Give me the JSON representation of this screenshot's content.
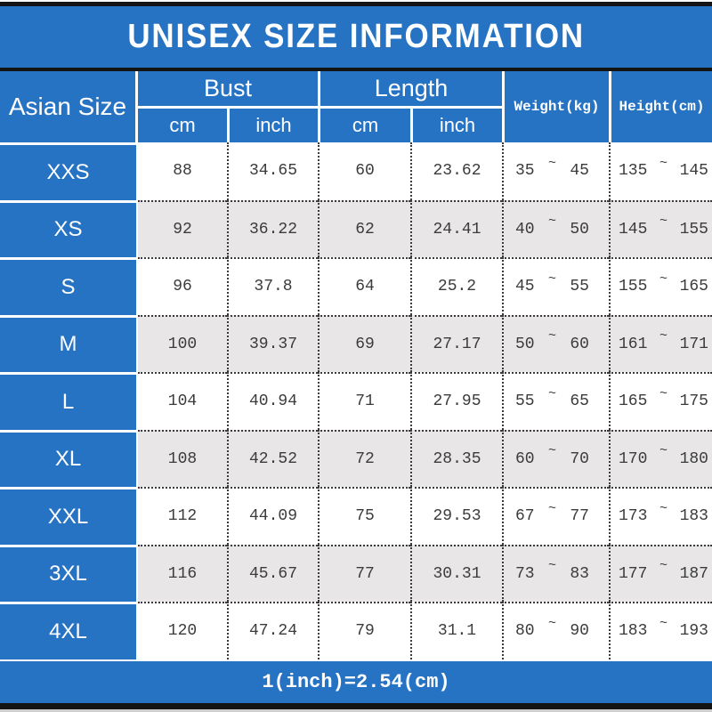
{
  "title": "UNISEX SIZE INFORMATION",
  "table": {
    "size_col_header": "Asian Size",
    "bust_label": "Bust",
    "length_label": "Length",
    "bust_sub": [
      "cm",
      "inch"
    ],
    "length_sub": [
      "cm",
      "inch"
    ],
    "weight_header": "Weight(kg)",
    "height_header": "Height(cm)",
    "sep": "~",
    "rows": [
      {
        "size": "XXS",
        "bust_cm": "88",
        "bust_inch": "34.65",
        "length_cm": "60",
        "length_inch": "23.62",
        "weight_min": "35",
        "weight_max": "45",
        "height_min": "135",
        "height_max": "145"
      },
      {
        "size": "XS",
        "bust_cm": "92",
        "bust_inch": "36.22",
        "length_cm": "62",
        "length_inch": "24.41",
        "weight_min": "40",
        "weight_max": "50",
        "height_min": "145",
        "height_max": "155"
      },
      {
        "size": "S",
        "bust_cm": "96",
        "bust_inch": "37.8",
        "length_cm": "64",
        "length_inch": "25.2",
        "weight_min": "45",
        "weight_max": "55",
        "height_min": "155",
        "height_max": "165"
      },
      {
        "size": "M",
        "bust_cm": "100",
        "bust_inch": "39.37",
        "length_cm": "69",
        "length_inch": "27.17",
        "weight_min": "50",
        "weight_max": "60",
        "height_min": "161",
        "height_max": "171"
      },
      {
        "size": "L",
        "bust_cm": "104",
        "bust_inch": "40.94",
        "length_cm": "71",
        "length_inch": "27.95",
        "weight_min": "55",
        "weight_max": "65",
        "height_min": "165",
        "height_max": "175"
      },
      {
        "size": "XL",
        "bust_cm": "108",
        "bust_inch": "42.52",
        "length_cm": "72",
        "length_inch": "28.35",
        "weight_min": "60",
        "weight_max": "70",
        "height_min": "170",
        "height_max": "180"
      },
      {
        "size": "XXL",
        "bust_cm": "112",
        "bust_inch": "44.09",
        "length_cm": "75",
        "length_inch": "29.53",
        "weight_min": "67",
        "weight_max": "77",
        "height_min": "173",
        "height_max": "183"
      },
      {
        "size": "3XL",
        "bust_cm": "116",
        "bust_inch": "45.67",
        "length_cm": "77",
        "length_inch": "30.31",
        "weight_min": "73",
        "weight_max": "83",
        "height_min": "177",
        "height_max": "187"
      },
      {
        "size": "4XL",
        "bust_cm": "120",
        "bust_inch": "47.24",
        "length_cm": "79",
        "length_inch": "31.1",
        "weight_min": "80",
        "weight_max": "90",
        "height_min": "183",
        "height_max": "193"
      }
    ]
  },
  "footer": {
    "note": "1(inch)=2.54(cm)"
  },
  "colors": {
    "accent_blue": "#2673c4",
    "alt_row_gray": "#e8e6e7",
    "cell_text": "#3b3b3b",
    "bar_black": "#141414"
  },
  "chart_data": {
    "type": "table",
    "title": "UNISEX SIZE INFORMATION",
    "columns": [
      "Asian Size",
      "Bust cm",
      "Bust inch",
      "Length cm",
      "Length inch",
      "Weight(kg)",
      "Height(cm)"
    ],
    "rows": [
      [
        "XXS",
        88,
        34.65,
        60,
        23.62,
        "35~45",
        "135~145"
      ],
      [
        "XS",
        92,
        36.22,
        62,
        24.41,
        "40~50",
        "145~155"
      ],
      [
        "S",
        96,
        37.8,
        64,
        25.2,
        "45~55",
        "155~165"
      ],
      [
        "M",
        100,
        39.37,
        69,
        27.17,
        "50~60",
        "161~171"
      ],
      [
        "L",
        104,
        40.94,
        71,
        27.95,
        "55~65",
        "165~175"
      ],
      [
        "XL",
        108,
        42.52,
        72,
        28.35,
        "60~70",
        "170~180"
      ],
      [
        "XXL",
        112,
        44.09,
        75,
        29.53,
        "67~77",
        "173~183"
      ],
      [
        "3XL",
        116,
        45.67,
        77,
        30.31,
        "73~83",
        "177~187"
      ],
      [
        "4XL",
        120,
        47.24,
        79,
        31.1,
        "80~90",
        "183~193"
      ]
    ],
    "note": "1(inch)=2.54(cm)"
  }
}
